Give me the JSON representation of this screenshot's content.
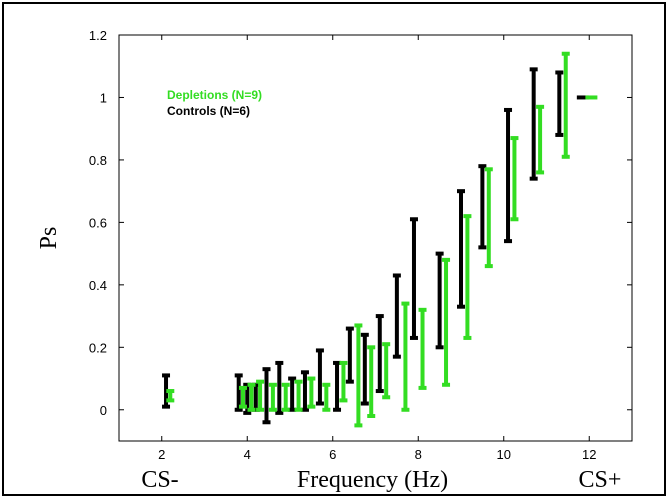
{
  "chart_data": {
    "type": "errorbar",
    "xlabel": "Frequency (Hz)",
    "ylabel": "Ps",
    "xlim": [
      1,
      13
    ],
    "ylim": [
      -0.1,
      1.2
    ],
    "x_ticks": [
      2,
      4,
      6,
      8,
      10,
      12
    ],
    "y_ticks": [
      0,
      0.2,
      0.4,
      0.6,
      0.8,
      1,
      1.2
    ],
    "x_tick_labels": [
      "2",
      "4",
      "6",
      "8",
      "10",
      "12"
    ],
    "y_tick_labels": [
      "0",
      "0.2",
      "0.4",
      "0.6",
      "0.8",
      "1",
      "1.2"
    ],
    "x_end_labels": {
      "left": "CS-",
      "right": "CS+"
    },
    "grid": false,
    "legend_placement": "top-left",
    "series": [
      {
        "name": "Controls (N=6)",
        "color": "#000000",
        "points": [
          {
            "x": 2.1,
            "low": 0.01,
            "high": 0.11
          },
          {
            "x": 3.8,
            "low": 0.0,
            "high": 0.11
          },
          {
            "x": 4.0,
            "low": -0.01,
            "high": 0.08
          },
          {
            "x": 4.2,
            "low": 0.0,
            "high": 0.08
          },
          {
            "x": 4.45,
            "low": -0.04,
            "high": 0.13
          },
          {
            "x": 4.75,
            "low": -0.01,
            "high": 0.15
          },
          {
            "x": 5.05,
            "low": 0.0,
            "high": 0.1
          },
          {
            "x": 5.35,
            "low": 0.0,
            "high": 0.12
          },
          {
            "x": 5.7,
            "low": 0.02,
            "high": 0.19
          },
          {
            "x": 6.1,
            "low": 0.0,
            "high": 0.15
          },
          {
            "x": 6.4,
            "low": 0.09,
            "high": 0.26
          },
          {
            "x": 6.75,
            "low": 0.02,
            "high": 0.24
          },
          {
            "x": 7.1,
            "low": 0.06,
            "high": 0.3
          },
          {
            "x": 7.5,
            "low": 0.17,
            "high": 0.43
          },
          {
            "x": 7.9,
            "low": 0.23,
            "high": 0.61
          },
          {
            "x": 8.5,
            "low": 0.2,
            "high": 0.5
          },
          {
            "x": 9.0,
            "low": 0.33,
            "high": 0.7
          },
          {
            "x": 9.5,
            "low": 0.52,
            "high": 0.78
          },
          {
            "x": 10.1,
            "low": 0.54,
            "high": 0.96
          },
          {
            "x": 10.7,
            "low": 0.74,
            "high": 1.09
          },
          {
            "x": 11.3,
            "low": 0.88,
            "high": 1.08
          },
          {
            "x": 11.85,
            "low": 1.0,
            "high": 1.0
          }
        ]
      },
      {
        "name": "Depletions (N=9)",
        "color": "#33dd22",
        "points": [
          {
            "x": 2.2,
            "low": 0.03,
            "high": 0.06
          },
          {
            "x": 3.9,
            "low": 0.01,
            "high": 0.07
          },
          {
            "x": 4.1,
            "low": 0.0,
            "high": 0.08
          },
          {
            "x": 4.3,
            "low": 0.0,
            "high": 0.09
          },
          {
            "x": 4.6,
            "low": 0.0,
            "high": 0.08
          },
          {
            "x": 4.9,
            "low": 0.0,
            "high": 0.08
          },
          {
            "x": 5.2,
            "low": 0.0,
            "high": 0.09
          },
          {
            "x": 5.5,
            "low": 0.01,
            "high": 0.1
          },
          {
            "x": 5.85,
            "low": 0.0,
            "high": 0.08
          },
          {
            "x": 6.25,
            "low": 0.03,
            "high": 0.15
          },
          {
            "x": 6.6,
            "low": -0.05,
            "high": 0.27
          },
          {
            "x": 6.9,
            "low": -0.02,
            "high": 0.2
          },
          {
            "x": 7.25,
            "low": 0.04,
            "high": 0.21
          },
          {
            "x": 7.7,
            "low": 0.0,
            "high": 0.34
          },
          {
            "x": 8.1,
            "low": 0.07,
            "high": 0.32
          },
          {
            "x": 8.65,
            "low": 0.08,
            "high": 0.48
          },
          {
            "x": 9.15,
            "low": 0.23,
            "high": 0.62
          },
          {
            "x": 9.65,
            "low": 0.46,
            "high": 0.77
          },
          {
            "x": 10.25,
            "low": 0.61,
            "high": 0.87
          },
          {
            "x": 10.85,
            "low": 0.76,
            "high": 0.97
          },
          {
            "x": 11.45,
            "low": 0.81,
            "high": 1.14
          },
          {
            "x": 12.05,
            "low": 1.0,
            "high": 1.0
          }
        ]
      }
    ]
  }
}
